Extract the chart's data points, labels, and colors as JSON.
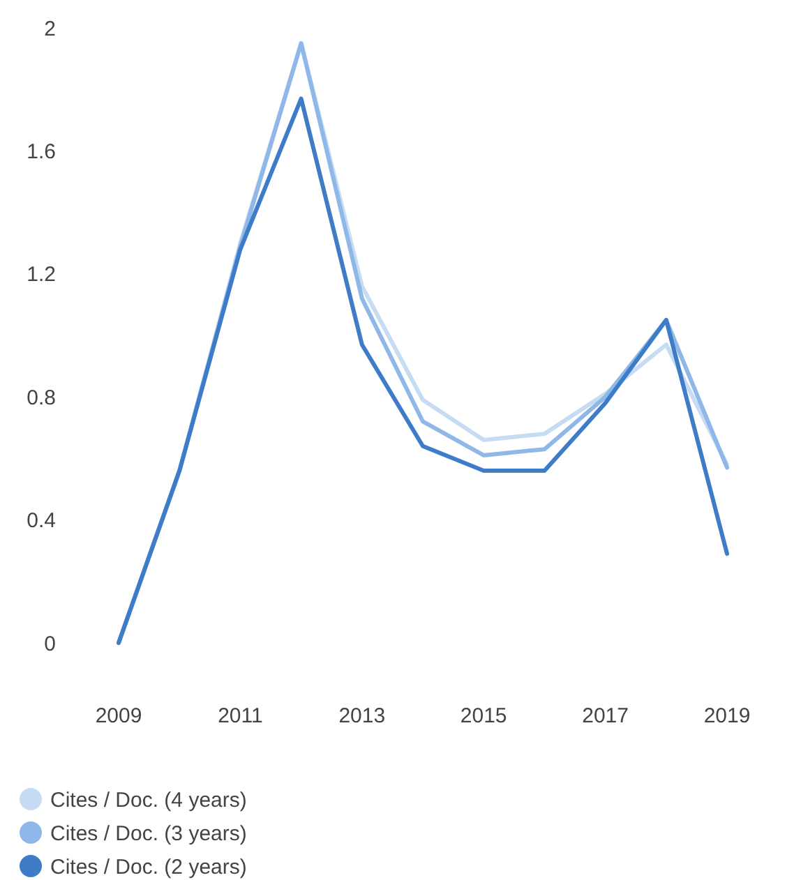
{
  "chart_data": {
    "type": "line",
    "x": [
      2009,
      2010,
      2011,
      2012,
      2013,
      2014,
      2015,
      2016,
      2017,
      2018,
      2019
    ],
    "series": [
      {
        "name": "Cites / Doc. (4 years)",
        "color": "#c6dcf2",
        "values": [
          0,
          0.56,
          1.3,
          1.95,
          1.16,
          0.79,
          0.66,
          0.68,
          0.81,
          0.97,
          0.58
        ]
      },
      {
        "name": "Cites / Doc. (3 years)",
        "color": "#8fb8e8",
        "values": [
          0,
          0.56,
          1.29,
          1.95,
          1.12,
          0.72,
          0.61,
          0.63,
          0.8,
          1.05,
          0.57
        ]
      },
      {
        "name": "Cites / Doc. (2 years)",
        "color": "#3f7cc8",
        "values": [
          0,
          0.56,
          1.28,
          1.77,
          0.97,
          0.64,
          0.56,
          0.56,
          0.78,
          1.05,
          0.29
        ]
      }
    ],
    "xlim": [
      2009,
      2019
    ],
    "xticks": [
      2009,
      2011,
      2013,
      2015,
      2017,
      2019
    ],
    "ylim": [
      0,
      2
    ],
    "yticks": [
      0,
      {
        "value": 0.4,
        "label": "0.4"
      },
      {
        "value": 0.8,
        "label": "0.8"
      },
      {
        "value": 1.2,
        "label": "1.2"
      },
      {
        "value": 1.6,
        "label": "1.6"
      },
      2
    ],
    "grid": false,
    "legend": "bottom left",
    "marker": "none",
    "line_style": "solid"
  }
}
